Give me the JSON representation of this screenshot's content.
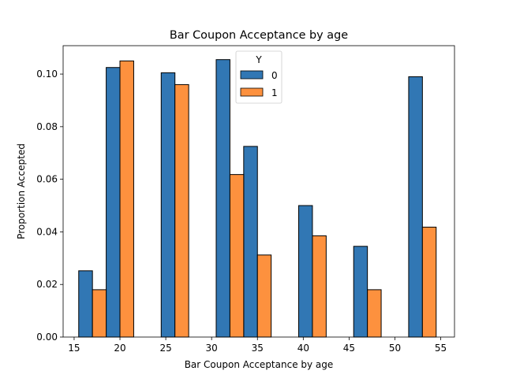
{
  "chart_data": {
    "type": "bar",
    "title": "Bar Coupon Acceptance by age",
    "xlabel": "Bar Coupon Acceptance by age",
    "ylabel": "Proportion Accepted",
    "xlim": [
      13.8,
      56.5
    ],
    "ylim": [
      0,
      0.1108
    ],
    "xticks": [
      15,
      20,
      25,
      30,
      35,
      40,
      45,
      50,
      55
    ],
    "yticks": [
      0.0,
      0.02,
      0.04,
      0.06,
      0.08,
      0.1
    ],
    "yticks_labels": [
      "0.00",
      "0.02",
      "0.04",
      "0.06",
      "0.08",
      "0.10"
    ],
    "bin_edges": [
      15.5,
      18.5,
      21.5,
      24.5,
      27.5,
      30.5,
      33.5,
      36.5,
      39.5,
      42.5,
      45.5,
      48.5,
      51.5,
      54.5
    ],
    "series": [
      {
        "name": "0",
        "color": "#1f77b4",
        "values": [
          0.0252,
          0.1025,
          0,
          0.1005,
          0,
          0.1055,
          0.0725,
          0,
          0.05,
          0,
          0.0345,
          0,
          0.099
        ]
      },
      {
        "name": "1",
        "color": "#ff7f0e",
        "values": [
          0.018,
          0.105,
          0,
          0.096,
          0,
          0.0618,
          0.0312,
          0,
          0.0385,
          0,
          0.018,
          0,
          0.0418
        ]
      }
    ],
    "legend": {
      "title": "Y",
      "placement": "upper-center"
    },
    "grid": false
  }
}
